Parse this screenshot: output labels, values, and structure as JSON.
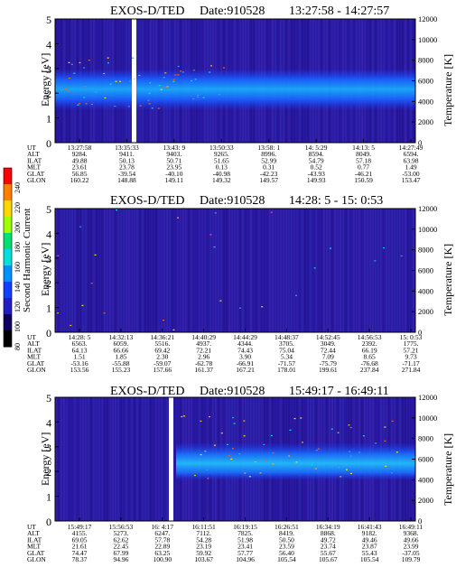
{
  "colorbar": {
    "label": "Second Harmonic Current",
    "ticks": [
      "240",
      "220",
      "200",
      "180",
      "160",
      "140",
      "120",
      "100",
      "80"
    ],
    "colors": [
      "#ff0000",
      "#ff7f00",
      "#ffd700",
      "#a0ff00",
      "#00e070",
      "#00e0e0",
      "#0090ff",
      "#1040ff",
      "#2020c0",
      "#100060",
      "#000000"
    ]
  },
  "chart_data": [
    {
      "type": "heatmap",
      "title": "EXOS-D/TED",
      "date_label": "Date:910528",
      "time_range": "13:27:58 - 14:27:57",
      "ylabel": "Energy [eV]",
      "y2label": "Temperature [K]",
      "ylim": [
        0,
        5
      ],
      "y2lim": [
        0,
        12000
      ],
      "yticks": [
        "0",
        "1",
        "2",
        "3",
        "4",
        "5"
      ],
      "y2ticks": [
        "0",
        "2000",
        "4000",
        "6000",
        "8000",
        "10000",
        "12000"
      ],
      "data_gaps": [
        "13:36:53 - 13:43:9"
      ],
      "table": {
        "row_labels": [
          "UT",
          "ALT",
          "ILAT",
          "MLT",
          "GLAT",
          "GLON"
        ],
        "columns": [
          [
            "13:27:58",
            "9284.",
            "49.88",
            "23.61",
            "56.85",
            "160.22"
          ],
          [
            "13:35:33",
            "9411.",
            "50.13",
            "23.78",
            "-39.54",
            "148.88"
          ],
          [
            "13:43: 9",
            "9403.",
            "50.71",
            "23.95",
            "-40.10",
            "149.11"
          ],
          [
            "13:50:33",
            "9265.",
            "51.65",
            "0.13",
            "-40.98",
            "149.32"
          ],
          [
            "13:58: 1",
            "8996.",
            "52.99",
            "0.31",
            "-42.23",
            "149.57"
          ],
          [
            "14: 5:29",
            "8594.",
            "54.79",
            "0.52",
            "-43.93",
            "149.93"
          ],
          [
            "14:13: 5",
            "8049.",
            "57.18",
            "0.77",
            "-46.21",
            "150.59"
          ],
          [
            "14:27:49",
            "6594.",
            "63.98",
            "1.49",
            "-53.00",
            "153.47"
          ]
        ]
      }
    },
    {
      "type": "heatmap",
      "title": "EXOS-D/TED",
      "date_label": "Date:910528",
      "time_range": "14:28: 5 - 15: 0:53",
      "ylabel": "Energy [eV]",
      "y2label": "Temperature [K]",
      "ylim": [
        0,
        5
      ],
      "y2lim": [
        0,
        12000
      ],
      "yticks": [
        "0",
        "1",
        "2",
        "3",
        "4",
        "5"
      ],
      "y2ticks": [
        "0",
        "2000",
        "4000",
        "6000",
        "8000",
        "10000",
        "12000"
      ],
      "data_gaps": [],
      "table": {
        "row_labels": [
          "UT",
          "ALT",
          "ILAT",
          "MLT",
          "GLAT",
          "GLON"
        ],
        "columns": [
          [
            "14:28: 5",
            "6563.",
            "64.13",
            "1.51",
            "-53.16",
            "153.56"
          ],
          [
            "14:32:13",
            "6059.",
            "66.66",
            "1.85",
            "-55.88",
            "155.23"
          ],
          [
            "14:36:21",
            "5516.",
            "69.42",
            "2.30",
            "-59.07",
            "157.66"
          ],
          [
            "14:40:29",
            "4937.",
            "72.21",
            "2.96",
            "-62.78",
            "161.37"
          ],
          [
            "14:44:29",
            "4344.",
            "74.43",
            "3.90",
            "-66.91",
            "167.21"
          ],
          [
            "14:48:37",
            "3705.",
            "75.04",
            "5.34",
            "-71.57",
            "178.01"
          ],
          [
            "14:52:45",
            "3049.",
            "72.44",
            "7.09",
            "-75.79",
            "199.61"
          ],
          [
            "14:56:53",
            "2392.",
            "66.19",
            "8.65",
            "-76.68",
            "237.84"
          ],
          [
            "15: 0:53",
            "1775.",
            "57.21",
            "9.73",
            "-71.17",
            "271.84"
          ]
        ]
      }
    },
    {
      "type": "heatmap",
      "title": "EXOS-D/TED",
      "date_label": "Date:910528",
      "time_range": "15:49:17 - 16:49:11",
      "ylabel": "Energy [eV]",
      "y2label": "Temperature [K]",
      "ylim": [
        0,
        5
      ],
      "y2lim": [
        0,
        12000
      ],
      "yticks": [
        "0",
        "1",
        "2",
        "3",
        "4",
        "5"
      ],
      "y2ticks": [
        "0",
        "2000",
        "4000",
        "6000",
        "8000",
        "10000",
        "12000"
      ],
      "data_gaps": [
        "15:58 - 16:11"
      ],
      "table": {
        "row_labels": [
          "UT",
          "ALT",
          "ILAT",
          "MLT",
          "GLAT",
          "GLON"
        ],
        "columns": [
          [
            "15:49:17",
            "4155.",
            "69.05",
            "21.61",
            "74.47",
            "78.37"
          ],
          [
            "15:56:53",
            "5273.",
            "62.62",
            "22.45",
            "67.99",
            "94.96"
          ],
          [
            "16: 4:17",
            "6247.",
            "57.78",
            "22.89",
            "63.25",
            "100.90"
          ],
          [
            "16:11:51",
            "7112.",
            "54.28",
            "23.19",
            "59.92",
            "103.67"
          ],
          [
            "16:19:15",
            "7825.",
            "51.98",
            "23.41",
            "57.77",
            "104.96"
          ],
          [
            "16:26:51",
            "8419.",
            "50.50",
            "23.59",
            "56.40",
            "105.54"
          ],
          [
            "16:34:19",
            "8868.",
            "49.72",
            "23.74",
            "55.67",
            "105.67"
          ],
          [
            "16:41:43",
            "9182.",
            "49.46",
            "23.87",
            "55.43",
            "105.54"
          ],
          [
            "16:49:11",
            "9368.",
            "49.66",
            "23.99",
            "-37.05",
            "109.79"
          ]
        ]
      }
    }
  ]
}
